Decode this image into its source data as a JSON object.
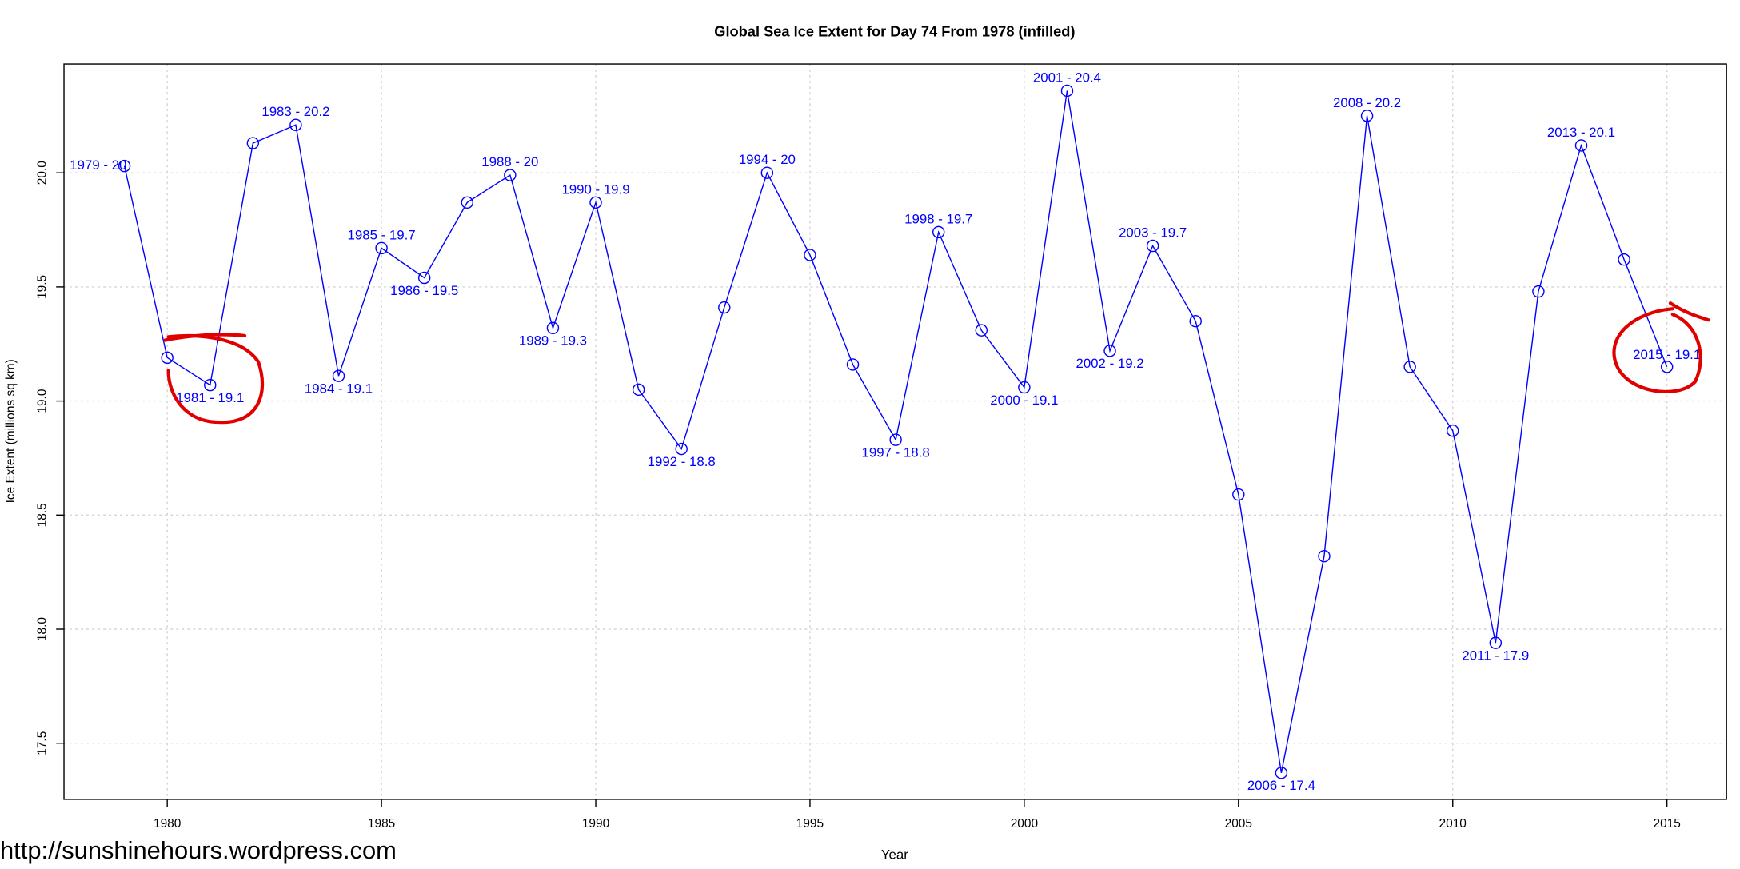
{
  "chart_data": {
    "type": "line",
    "title": "Global Sea Ice Extent for Day 74 From 1978 (infilled)",
    "x_label": "Year",
    "y_label": "Ice Extent (millions sq km)",
    "watermark": "http://sunshinehours.wordpress.com",
    "color": "#0000ff",
    "grid": true,
    "xlim": [
      1977.59,
      2016.39
    ],
    "ylim": [
      17.254,
      20.477
    ],
    "xticks": [
      1980,
      1985,
      1990,
      1995,
      2000,
      2005,
      2010,
      2015
    ],
    "yticks": [
      {
        "value": 17.5,
        "label": "17.5"
      },
      {
        "value": 18,
        "label": "18.0"
      },
      {
        "value": 18.5,
        "label": "18.5"
      },
      {
        "value": 19,
        "label": "19.0"
      },
      {
        "value": 19.5,
        "label": "19.5"
      },
      {
        "value": 20,
        "label": "20.0"
      }
    ],
    "x": [
      1979,
      1980,
      1981,
      1982,
      1983,
      1984,
      1985,
      1986,
      1987,
      1988,
      1989,
      1990,
      1991,
      1992,
      1993,
      1994,
      1995,
      1996,
      1997,
      1998,
      1999,
      2000,
      2001,
      2002,
      2003,
      2004,
      2005,
      2006,
      2007,
      2008,
      2009,
      2010,
      2011,
      2012,
      2013,
      2014,
      2015
    ],
    "values": [
      20.03,
      19.19,
      19.07,
      20.13,
      20.21,
      19.11,
      19.67,
      19.54,
      19.87,
      19.99,
      19.32,
      19.87,
      19.05,
      18.79,
      19.41,
      20.0,
      19.64,
      19.16,
      18.83,
      19.74,
      19.31,
      19.06,
      20.36,
      19.22,
      19.68,
      19.35,
      18.59,
      17.37,
      18.32,
      20.25,
      19.15,
      18.87,
      17.94,
      19.48,
      20.12,
      19.62,
      19.15
    ],
    "point_labels": [
      "1979 - 20",
      null,
      "1981 - 19.1",
      null,
      "1983 - 20.2",
      "1984 - 19.1",
      "1985 - 19.7",
      "1986 - 19.5",
      null,
      "1988 - 20",
      "1989 - 19.3",
      "1990 - 19.9",
      null,
      "1992 - 18.8",
      null,
      "1994 - 20",
      null,
      null,
      "1997 - 18.8",
      "1998 - 19.7",
      null,
      "2000 - 19.1",
      "2001 - 20.4",
      "2002 - 19.2",
      "2003 - 19.7",
      null,
      null,
      "2006 - 17.4",
      null,
      "2008 - 20.2",
      null,
      null,
      "2011 - 17.9",
      null,
      "2013 - 20.1",
      null,
      "2015 - 19.1"
    ]
  }
}
